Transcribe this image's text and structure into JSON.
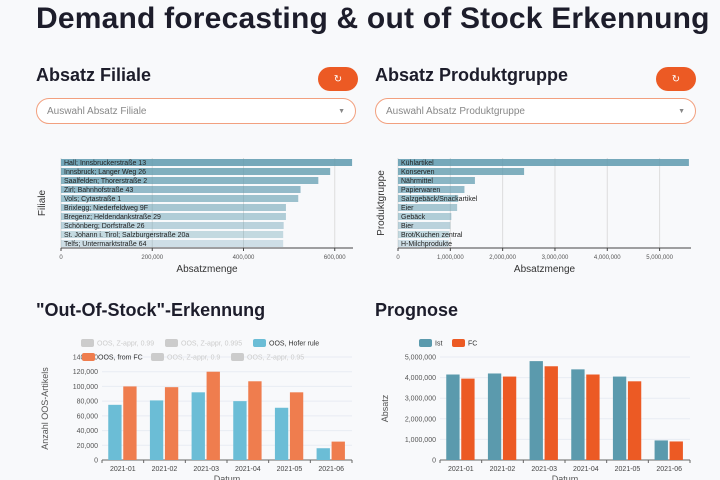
{
  "title": "Demand forecasting & out of Stock Erkennung",
  "filiale": {
    "heading": "Absatz Filiale",
    "reset_icon": "refresh-icon",
    "dropdown_placeholder": "Auswahl Absatz Filiale"
  },
  "produkt": {
    "heading": "Absatz Produktgruppe",
    "reset_icon": "refresh-icon",
    "dropdown_placeholder": "Auswahl Absatz Produktgruppe"
  },
  "oos": {
    "heading": "\"Out-Of-Stock\"-Erkennung"
  },
  "prognose": {
    "heading": "Prognose"
  },
  "chart_data": [
    {
      "type": "bar",
      "orientation": "horizontal",
      "xlabel": "Absatzmenge",
      "ylabel": "Filiale",
      "xlim": [
        0,
        640000
      ],
      "xticks": [
        "0",
        "200,000",
        "400,000",
        "600,000"
      ],
      "tickvals": [
        0,
        200000,
        400000,
        600000
      ],
      "categories": [
        "Hall; Innsbruckerstraße 13",
        "Innsbruck; Langer Weg 26",
        "Saalfelden; Thorerstraße 2",
        "Zirl; Bahnhofstraße 43",
        "Vols; Cytastraße 1",
        "Brixlegg; Niederfeldweg 9F",
        "Bregenz; Heldendankstraße 29",
        "Schönberg; Dorfstraße 26",
        "St. Johann i. Tirol; Salzburgerstraße 20a",
        "Telfs; Untermarktstraße 64"
      ],
      "values": [
        638000,
        590000,
        564000,
        525000,
        520000,
        493000,
        493000,
        488000,
        487000,
        487000
      ],
      "color": "#5e9aae"
    },
    {
      "type": "bar",
      "orientation": "horizontal",
      "xlabel": "Absatzmenge",
      "ylabel": "Produktgruppe",
      "xlim": [
        0,
        5600000
      ],
      "xticks": [
        "0",
        "1,000,000",
        "2,000,000",
        "3,000,000",
        "4,000,000",
        "5,000,000"
      ],
      "tickvals": [
        0,
        1000000,
        2000000,
        3000000,
        4000000,
        5000000
      ],
      "categories": [
        "Kühlartikel",
        "Konserven",
        "Nährmittel",
        "Papierwaren",
        "Salzgebäck/Snackartikel",
        "Eier",
        "Gebäck",
        "Bier",
        "Brot/Kuchen zentral",
        "H-Milchprodukte"
      ],
      "values": [
        5560000,
        2410000,
        1470000,
        1270000,
        1150000,
        1130000,
        1020000,
        1000000,
        980000,
        970000
      ],
      "color": "#5e9aae"
    },
    {
      "type": "bar",
      "xlabel": "Datum",
      "ylabel": "Anzahl OOS-Artikels",
      "ylim": [
        0,
        140000
      ],
      "yticks": [
        "0",
        "20,000",
        "40,000",
        "60,000",
        "80,000",
        "100,000",
        "120,000",
        "140,000"
      ],
      "tickvals": [
        0,
        20000,
        40000,
        60000,
        80000,
        100000,
        120000,
        140000
      ],
      "categories": [
        "2021-01",
        "2021-02",
        "2021-03",
        "2021-04",
        "2021-05",
        "2021-06"
      ],
      "legend": [
        {
          "name": "OOS, Z-appr, 0.99",
          "hidden": true
        },
        {
          "name": "OOS, Z-appr, 0.995",
          "hidden": true
        },
        {
          "name": "OOS, Hofer rule",
          "color": "#6bbdd6"
        },
        {
          "name": "OOS, from FC",
          "color": "#ef7d4e"
        },
        {
          "name": "OOS, Z-appr, 0.9",
          "hidden": true
        },
        {
          "name": "OOS, Z-appr, 0.95",
          "hidden": true
        }
      ],
      "series": [
        {
          "name": "OOS, Hofer rule",
          "color": "#6bbdd6",
          "values": [
            75000,
            81000,
            92000,
            80000,
            71000,
            16000
          ]
        },
        {
          "name": "OOS, from FC",
          "color": "#ef7d4e",
          "values": [
            100000,
            99000,
            120000,
            107000,
            92000,
            25000
          ]
        }
      ]
    },
    {
      "type": "bar",
      "xlabel": "Datum",
      "ylabel": "Absatz",
      "ylim": [
        0,
        5000000
      ],
      "yticks": [
        "0",
        "1,000,000",
        "2,000,000",
        "3,000,000",
        "4,000,000",
        "5,000,000"
      ],
      "tickvals": [
        0,
        1000000,
        2000000,
        3000000,
        4000000,
        5000000
      ],
      "categories": [
        "2021-01",
        "2021-02",
        "2021-03",
        "2021-04",
        "2021-05",
        "2021-06"
      ],
      "legend": [
        {
          "name": "Ist",
          "color": "#5b9aad"
        },
        {
          "name": "FC",
          "color": "#ec5a24"
        }
      ],
      "series": [
        {
          "name": "Ist",
          "color": "#5b9aad",
          "values": [
            4150000,
            4200000,
            4800000,
            4400000,
            4050000,
            950000
          ]
        },
        {
          "name": "FC",
          "color": "#ec5a24",
          "values": [
            3950000,
            4050000,
            4550000,
            4150000,
            3820000,
            900000
          ]
        }
      ]
    }
  ]
}
